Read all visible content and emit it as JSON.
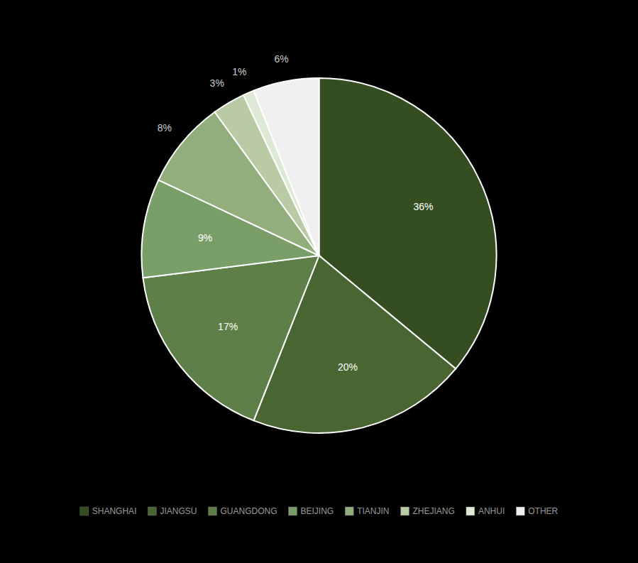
{
  "chart_data": {
    "type": "pie",
    "categories": [
      "SHANGHAI",
      "JIANGSU",
      "GUANGDONG",
      "BEIJING",
      "TIANJIN",
      "ZHEJIANG",
      "ANHUI",
      "OTHER"
    ],
    "values": [
      36,
      20,
      17,
      9,
      8,
      3,
      1,
      6
    ],
    "value_labels": [
      "36%",
      "20%",
      "17%",
      "9%",
      "8%",
      "3%",
      "1%",
      "6%"
    ],
    "colors": [
      "#344e22",
      "#496632",
      "#5e7f47",
      "#7a9e68",
      "#91ae7c",
      "#b8cba4",
      "#dde8d5",
      "#f0f0f0"
    ],
    "data_labels": true,
    "legend": "bottom"
  }
}
